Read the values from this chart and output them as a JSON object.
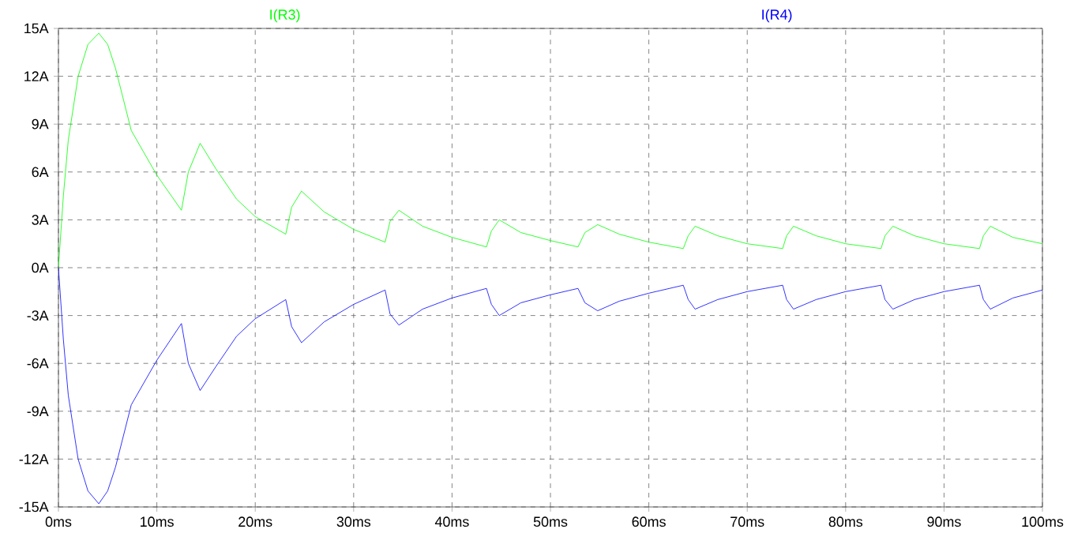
{
  "chart_data": {
    "type": "line",
    "legend": "top",
    "grid": true,
    "line_style": "solid",
    "marker": "none",
    "xlim": [
      0,
      100
    ],
    "ylim": [
      -15,
      15
    ],
    "xticks": [
      {
        "value": 0,
        "label": "0ms"
      },
      {
        "value": 10,
        "label": "10ms"
      },
      {
        "value": 20,
        "label": "20ms"
      },
      {
        "value": 30,
        "label": "30ms"
      },
      {
        "value": 40,
        "label": "40ms"
      },
      {
        "value": 50,
        "label": "50ms"
      },
      {
        "value": 60,
        "label": "60ms"
      },
      {
        "value": 70,
        "label": "70ms"
      },
      {
        "value": 80,
        "label": "80ms"
      },
      {
        "value": 90,
        "label": "90ms"
      },
      {
        "value": 100,
        "label": "100ms"
      }
    ],
    "yticks": [
      {
        "value": -15,
        "label": "-15A"
      },
      {
        "value": -12,
        "label": "-12A"
      },
      {
        "value": -9,
        "label": "-9A"
      },
      {
        "value": -6,
        "label": "-6A"
      },
      {
        "value": -3,
        "label": "-3A"
      },
      {
        "value": 0,
        "label": "0A"
      },
      {
        "value": 3,
        "label": "3A"
      },
      {
        "value": 6,
        "label": "6A"
      },
      {
        "value": 9,
        "label": "9A"
      },
      {
        "value": 12,
        "label": "12A"
      },
      {
        "value": 15,
        "label": "15A"
      }
    ],
    "series": [
      {
        "name": "I(R3)",
        "color": "#00ff00",
        "x": [
          0,
          0.5,
          1,
          2,
          3,
          4.1,
          5,
          5.8,
          7.4,
          10,
          12.5,
          13.2,
          14.4,
          16,
          18.1,
          20,
          23.1,
          23.7,
          24.7,
          27,
          30,
          33.2,
          33.7,
          34.6,
          37,
          40,
          43.5,
          44,
          44.8,
          47,
          50,
          52.8,
          53.5,
          54.8,
          57,
          60,
          63.5,
          64,
          64.7,
          67,
          70,
          73.6,
          74,
          74.7,
          77,
          80,
          83.6,
          84,
          84.8,
          87,
          90,
          93.6,
          94,
          94.7,
          97,
          100
        ],
        "values": [
          0,
          4.5,
          8,
          12,
          14,
          14.7,
          14,
          12.5,
          8.6,
          5.8,
          3.6,
          6,
          7.8,
          6.2,
          4.3,
          3.2,
          2.1,
          3.8,
          4.8,
          3.5,
          2.4,
          1.6,
          2.9,
          3.6,
          2.6,
          1.9,
          1.3,
          2.3,
          3.0,
          2.2,
          1.7,
          1.3,
          2.2,
          2.7,
          2.1,
          1.6,
          1.2,
          2.0,
          2.6,
          2.0,
          1.5,
          1.2,
          2.0,
          2.6,
          2.0,
          1.5,
          1.2,
          2.0,
          2.6,
          2.0,
          1.5,
          1.2,
          2.0,
          2.6,
          1.9,
          1.5
        ]
      },
      {
        "name": "I(R4)",
        "color": "#0000ff",
        "x": [
          0,
          0.5,
          1,
          2,
          3,
          4.1,
          5,
          5.8,
          7.4,
          10,
          12.5,
          13.2,
          14.4,
          16,
          18.1,
          20,
          23.1,
          23.7,
          24.7,
          27,
          30,
          33.2,
          33.7,
          34.6,
          37,
          40,
          43.5,
          44,
          44.8,
          47,
          50,
          52.8,
          53.5,
          54.8,
          57,
          60,
          63.5,
          64,
          64.7,
          67,
          70,
          73.6,
          74,
          74.7,
          77,
          80,
          83.6,
          84,
          84.8,
          87,
          90,
          93.6,
          94,
          94.7,
          97,
          100
        ],
        "values": [
          0,
          -4.5,
          -8,
          -12,
          -14,
          -14.8,
          -14,
          -12.5,
          -8.6,
          -5.8,
          -3.5,
          -6,
          -7.7,
          -6.2,
          -4.3,
          -3.2,
          -2.0,
          -3.7,
          -4.7,
          -3.4,
          -2.3,
          -1.4,
          -2.9,
          -3.6,
          -2.6,
          -1.9,
          -1.3,
          -2.3,
          -3.0,
          -2.2,
          -1.7,
          -1.3,
          -2.2,
          -2.7,
          -2.1,
          -1.6,
          -1.1,
          -2.0,
          -2.6,
          -2.0,
          -1.5,
          -1.1,
          -2.0,
          -2.6,
          -2.0,
          -1.5,
          -1.1,
          -2.0,
          -2.6,
          -2.0,
          -1.5,
          -1.1,
          -2.0,
          -2.6,
          -1.9,
          -1.4
        ]
      }
    ]
  }
}
